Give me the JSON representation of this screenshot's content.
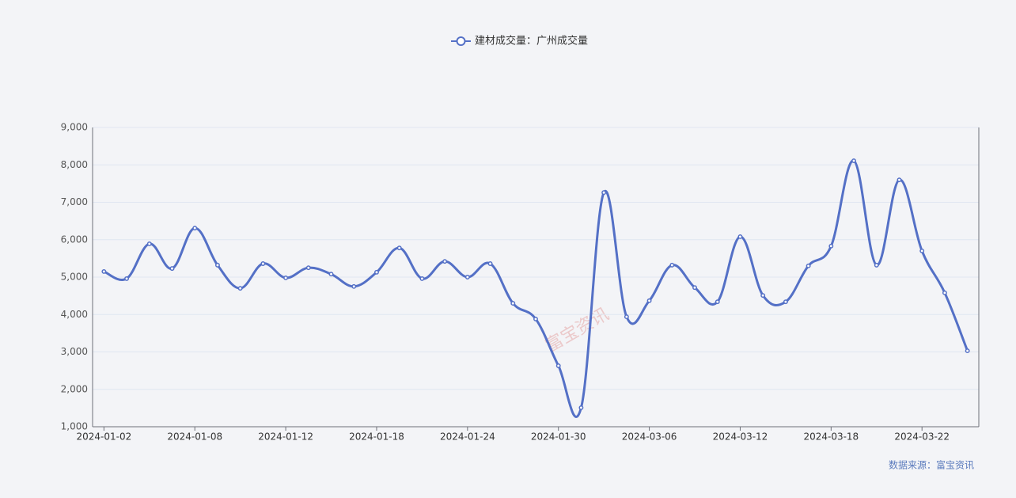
{
  "chart_data": {
    "type": "line",
    "legend_position": "top",
    "source": "数据来源：富宝资讯",
    "watermark": "富宝资讯",
    "categories": [
      "2024-01-02",
      null,
      null,
      null,
      "2024-01-08",
      null,
      null,
      null,
      "2024-01-12",
      null,
      null,
      null,
      "2024-01-18",
      null,
      null,
      null,
      "2024-01-24",
      null,
      null,
      null,
      "2024-01-30",
      null,
      null,
      null,
      "2024-03-06",
      null,
      null,
      null,
      "2024-03-12",
      null,
      null,
      null,
      "2024-03-18",
      null,
      null,
      null,
      "2024-03-22",
      null,
      null
    ],
    "series": [
      {
        "name": "建材成交量：广州成交量",
        "color": "#5470c6",
        "values": [
          5150,
          4960,
          5890,
          5230,
          6310,
          5320,
          4700,
          5360,
          4980,
          5250,
          5080,
          4750,
          5130,
          5780,
          4960,
          5420,
          5000,
          5360,
          4300,
          3880,
          2630,
          1510,
          7260,
          3940,
          4370,
          5320,
          4720,
          4340,
          6080,
          4510,
          4340,
          5300,
          5830,
          8110,
          5320,
          7600,
          5700,
          4580,
          3030
        ]
      }
    ],
    "ylim": [
      1000,
      9000
    ],
    "yticks": [
      {
        "value": 1000,
        "label": "1,000"
      },
      {
        "value": 2000,
        "label": "2,000"
      },
      {
        "value": 3000,
        "label": "3,000"
      },
      {
        "value": 4000,
        "label": "4,000"
      },
      {
        "value": 5000,
        "label": "5,000"
      },
      {
        "value": 6000,
        "label": "6,000"
      },
      {
        "value": 7000,
        "label": "7,000"
      },
      {
        "value": 8000,
        "label": "8,000"
      },
      {
        "value": 9000,
        "label": "9,000"
      }
    ],
    "grid": true
  }
}
